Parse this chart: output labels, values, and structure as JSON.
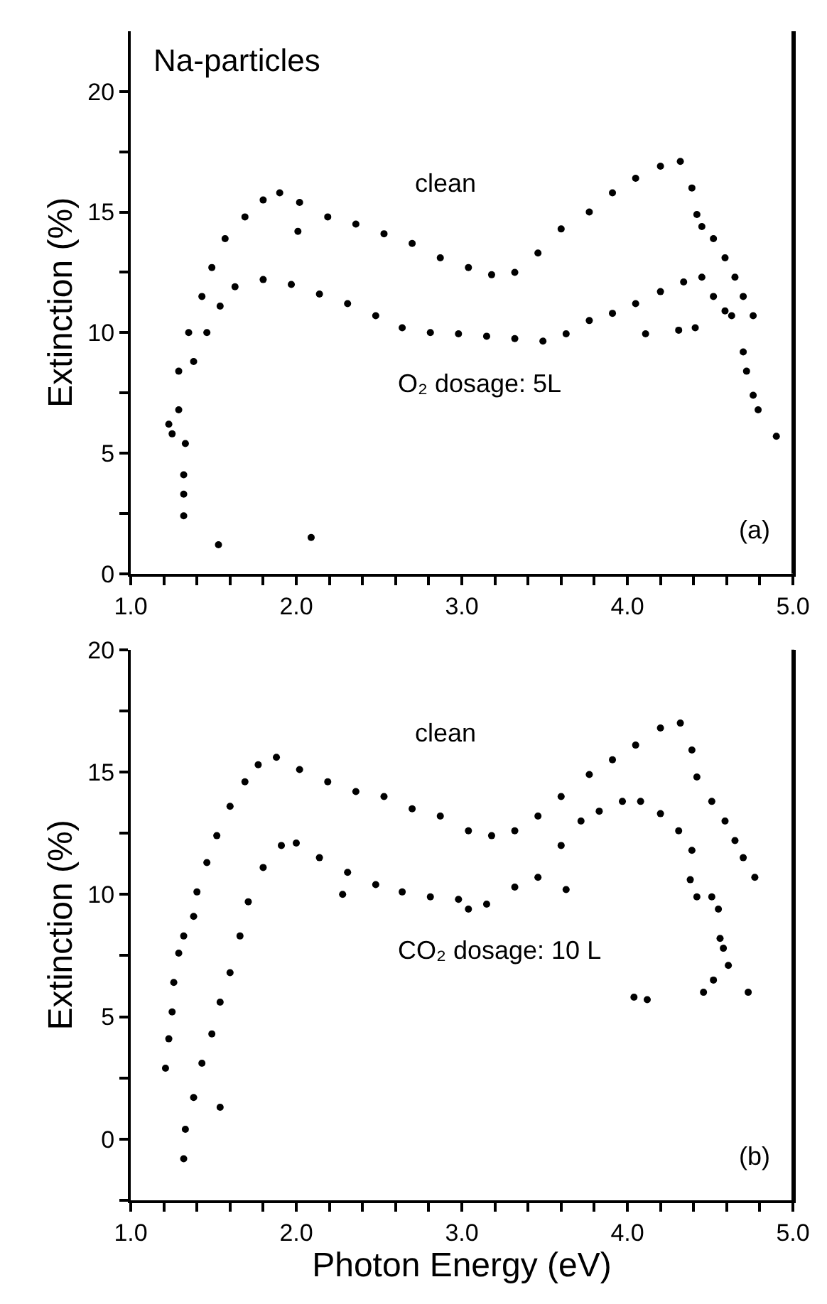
{
  "chart_data": [
    {
      "type": "scatter",
      "title": "Na-particles",
      "ylabel": "Extinction (%)",
      "marker": "circle",
      "xlim": [
        1.0,
        5.0
      ],
      "ylim": [
        0,
        22.5
      ],
      "xticks": [
        {
          "value": 1.0,
          "label": "1.0"
        },
        {
          "value": 1.2,
          "label": null
        },
        {
          "value": 1.4,
          "label": null
        },
        {
          "value": 1.6,
          "label": null
        },
        {
          "value": 1.8,
          "label": null
        },
        {
          "value": 2.0,
          "label": "2.0"
        },
        {
          "value": 2.2,
          "label": null
        },
        {
          "value": 2.4,
          "label": null
        },
        {
          "value": 2.6,
          "label": null
        },
        {
          "value": 2.8,
          "label": null
        },
        {
          "value": 3.0,
          "label": "3.0"
        },
        {
          "value": 3.2,
          "label": null
        },
        {
          "value": 3.4,
          "label": null
        },
        {
          "value": 3.6,
          "label": null
        },
        {
          "value": 3.8,
          "label": null
        },
        {
          "value": 4.0,
          "label": "4.0"
        },
        {
          "value": 4.2,
          "label": null
        },
        {
          "value": 4.4,
          "label": null
        },
        {
          "value": 4.6,
          "label": null
        },
        {
          "value": 4.8,
          "label": null
        },
        {
          "value": 5.0,
          "label": "5.0"
        }
      ],
      "yticks": [
        0,
        {
          "value": 2.5,
          "label": null
        },
        5,
        {
          "value": 7.5,
          "label": null
        },
        10,
        {
          "value": 12.5,
          "label": null
        },
        15,
        {
          "value": 17.5,
          "label": null
        },
        20
      ],
      "annotations": [
        "clean",
        "O₂ dosage: 5L",
        "(a)"
      ],
      "series": [
        {
          "color": "#000000",
          "x": [
            1.23,
            1.29,
            1.35,
            1.43,
            1.49,
            1.57,
            1.69,
            1.8,
            1.9,
            2.02,
            2.19,
            2.36,
            2.53,
            2.7,
            2.87,
            3.04,
            3.18,
            3.32,
            3.46,
            3.6,
            3.77,
            3.91,
            4.05,
            4.2,
            4.32,
            4.39,
            4.42,
            4.45,
            4.52,
            4.59,
            4.65,
            4.7,
            4.76,
            4.7,
            4.72,
            4.76,
            4.79,
            4.9,
            2.01,
            1.32,
            1.32,
            1.32,
            1.53
          ],
          "values": [
            6.2,
            8.4,
            10.0,
            11.5,
            12.7,
            13.9,
            14.8,
            15.5,
            15.8,
            15.4,
            14.8,
            14.5,
            14.1,
            13.7,
            13.1,
            12.7,
            12.4,
            12.5,
            13.3,
            14.3,
            15.0,
            15.8,
            16.4,
            16.9,
            17.1,
            16.0,
            14.9,
            14.4,
            13.9,
            13.1,
            12.3,
            11.5,
            10.7,
            9.2,
            8.4,
            7.4,
            6.8,
            5.7,
            14.2,
            4.1,
            3.3,
            2.4,
            1.2
          ]
        },
        {
          "color": "#000000",
          "x": [
            1.25,
            1.29,
            1.33,
            1.38,
            1.46,
            1.54,
            1.63,
            1.8,
            1.97,
            2.14,
            2.31,
            2.48,
            2.64,
            2.81,
            2.98,
            3.15,
            3.32,
            3.49,
            3.63,
            3.77,
            3.91,
            4.05,
            4.2,
            4.34,
            4.45,
            4.52,
            4.59,
            4.63,
            4.31,
            4.41,
            4.11,
            2.09
          ],
          "values": [
            5.8,
            6.8,
            5.4,
            8.8,
            10.0,
            11.1,
            11.9,
            12.2,
            12.0,
            11.6,
            11.2,
            10.7,
            10.2,
            10.0,
            9.95,
            9.85,
            9.75,
            9.65,
            9.95,
            10.5,
            10.8,
            11.2,
            11.7,
            12.1,
            12.3,
            11.5,
            10.9,
            10.7,
            10.1,
            10.2,
            9.95,
            1.5
          ]
        }
      ]
    },
    {
      "type": "scatter",
      "xlabel": "Photon Energy (eV)",
      "ylabel": "Extinction (%)",
      "marker": "circle",
      "xlim": [
        1.0,
        5.0
      ],
      "ylim": [
        -2.5,
        20
      ],
      "xticks": [
        {
          "value": 1.0,
          "label": "1.0"
        },
        {
          "value": 1.2,
          "label": null
        },
        {
          "value": 1.4,
          "label": null
        },
        {
          "value": 1.6,
          "label": null
        },
        {
          "value": 1.8,
          "label": null
        },
        {
          "value": 2.0,
          "label": "2.0"
        },
        {
          "value": 2.2,
          "label": null
        },
        {
          "value": 2.4,
          "label": null
        },
        {
          "value": 2.6,
          "label": null
        },
        {
          "value": 2.8,
          "label": null
        },
        {
          "value": 3.0,
          "label": "3.0"
        },
        {
          "value": 3.2,
          "label": null
        },
        {
          "value": 3.4,
          "label": null
        },
        {
          "value": 3.6,
          "label": null
        },
        {
          "value": 3.8,
          "label": null
        },
        {
          "value": 4.0,
          "label": "4.0"
        },
        {
          "value": 4.2,
          "label": null
        },
        {
          "value": 4.4,
          "label": null
        },
        {
          "value": 4.6,
          "label": null
        },
        {
          "value": 4.8,
          "label": null
        },
        {
          "value": 5.0,
          "label": "5.0"
        }
      ],
      "yticks": [
        {
          "value": -2.5,
          "label": null
        },
        0,
        {
          "value": 2.5,
          "label": null
        },
        5,
        {
          "value": 7.5,
          "label": null
        },
        10,
        {
          "value": 12.5,
          "label": null
        },
        15,
        {
          "value": 17.5,
          "label": null
        },
        20
      ],
      "annotations": [
        "clean",
        "CO₂ dosage: 10 L",
        "(b)"
      ],
      "series": [
        {
          "color": "#000000",
          "x": [
            1.21,
            1.23,
            1.25,
            1.26,
            1.29,
            1.32,
            1.38,
            1.4,
            1.46,
            1.52,
            1.6,
            1.69,
            1.77,
            1.88,
            2.02,
            2.19,
            2.36,
            2.53,
            2.7,
            2.87,
            3.04,
            3.18,
            3.32,
            3.46,
            3.6,
            3.77,
            3.91,
            4.05,
            4.2,
            4.32,
            4.39,
            4.42,
            4.51,
            4.59,
            4.65,
            4.7,
            4.77
          ],
          "values": [
            2.9,
            4.1,
            5.2,
            6.4,
            7.6,
            8.3,
            9.1,
            10.1,
            11.3,
            12.4,
            13.6,
            14.6,
            15.3,
            15.6,
            15.1,
            14.6,
            14.2,
            14.0,
            13.5,
            13.2,
            12.6,
            12.4,
            12.6,
            13.2,
            14.0,
            14.9,
            15.5,
            16.1,
            16.8,
            17.0,
            15.9,
            14.8,
            13.8,
            13.0,
            12.2,
            11.5,
            10.7
          ]
        },
        {
          "color": "#000000",
          "x": [
            1.32,
            1.33,
            1.38,
            1.43,
            1.49,
            1.54,
            1.6,
            1.66,
            1.71,
            1.8,
            1.91,
            2.0,
            2.14,
            2.31,
            2.48,
            2.64,
            2.81,
            2.98,
            3.15,
            3.32,
            3.46,
            3.6,
            3.72,
            3.83,
            3.97,
            4.08,
            4.2,
            4.31,
            4.39,
            4.42,
            4.51,
            4.55,
            4.58,
            4.61,
            4.04,
            4.12,
            4.46,
            4.52,
            4.73,
            4.56,
            2.28,
            3.04,
            3.63,
            4.38,
            1.54
          ],
          "values": [
            -0.8,
            0.4,
            1.7,
            3.1,
            4.3,
            5.6,
            6.8,
            8.3,
            9.7,
            11.1,
            12.0,
            12.1,
            11.5,
            10.9,
            10.4,
            10.1,
            9.9,
            9.8,
            9.6,
            10.3,
            10.7,
            12.0,
            13.0,
            13.4,
            13.8,
            13.8,
            13.3,
            12.6,
            11.8,
            9.9,
            9.9,
            9.4,
            7.8,
            7.1,
            5.8,
            5.7,
            6.0,
            6.5,
            6.0,
            8.2,
            10.0,
            9.4,
            10.2,
            10.6,
            1.3
          ]
        }
      ]
    }
  ]
}
